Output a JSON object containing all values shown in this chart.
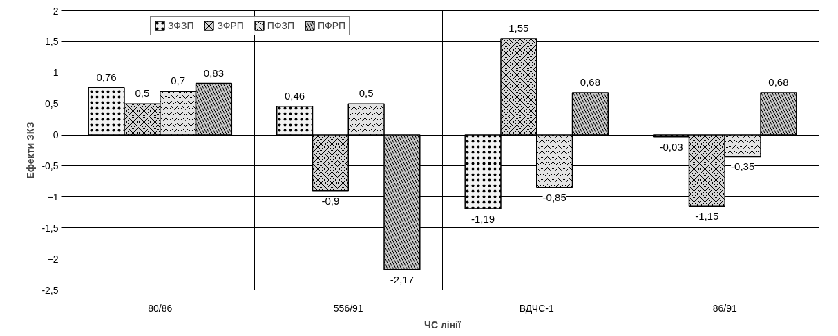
{
  "chart_data": {
    "type": "bar",
    "xlabel": "ЧС лінії",
    "ylabel": "Ефекти ЗКЗ",
    "categories": [
      "80/86",
      "556/91",
      "ВДЧС-1",
      "86/91"
    ],
    "series": [
      {
        "name": "ЗФЗП",
        "color": "#f2f2f2",
        "values": [
          0.76,
          0.46,
          -1.19,
          -0.03
        ],
        "value_labels": [
          "0,76",
          "0,46",
          "-1,19",
          "-0,03"
        ]
      },
      {
        "name": "ЗФРП",
        "color": "#d4d4d4",
        "values": [
          0.5,
          -0.9,
          1.55,
          -1.15
        ],
        "value_labels": [
          "0,5",
          "-0,9",
          "1,55",
          "-1,15"
        ]
      },
      {
        "name": "ПФЗП",
        "color": "#e3e3e3",
        "values": [
          0.7,
          0.5,
          -0.85,
          -0.35
        ],
        "value_labels": [
          "0,7",
          "0,5",
          "-0,85",
          "-0,35"
        ]
      },
      {
        "name": "ПФРП",
        "color": "#c4c4c4",
        "values": [
          0.83,
          -2.17,
          0.68,
          0.68
        ],
        "value_labels": [
          "0,83",
          "-2,17",
          "0,68",
          "0,68"
        ]
      }
    ],
    "ylim": [
      -2.5,
      2
    ],
    "yticks": [
      {
        "value": -2.5,
        "label": "-2,5"
      },
      -2,
      {
        "value": -1.5,
        "label": "-1,5"
      },
      -1,
      {
        "value": -0.5,
        "label": "-0,5"
      },
      0,
      {
        "value": 0.5,
        "label": "0,5"
      },
      1,
      {
        "value": 1.5,
        "label": "1,5"
      },
      2
    ],
    "grid": true,
    "legend": "top"
  }
}
